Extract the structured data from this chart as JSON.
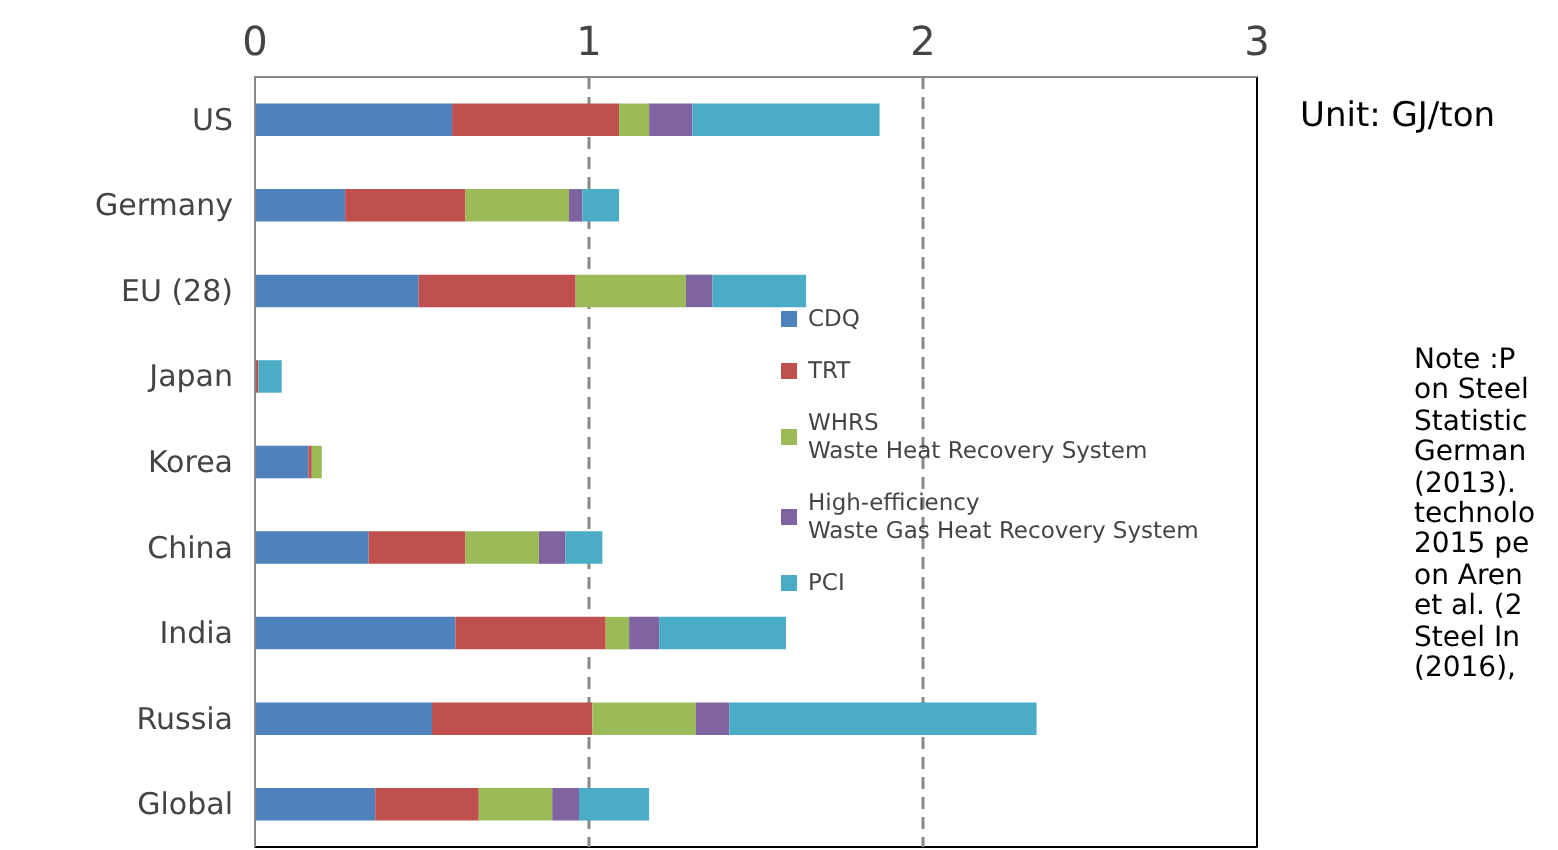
{
  "chart_data": {
    "type": "bar",
    "orientation": "horizontal",
    "stacked": true,
    "categories": [
      "US",
      "Germany",
      "EU (28)",
      "Japan",
      "Korea",
      "China",
      "India",
      "Russia",
      "Global"
    ],
    "series": [
      {
        "name": "CDQ",
        "color": "#4f81bd",
        "values": [
          0.59,
          0.27,
          0.49,
          0,
          0.16,
          0.34,
          0.6,
          0.53,
          0.36
        ]
      },
      {
        "name": "TRT",
        "color": "#c0504d",
        "values": [
          0.5,
          0.36,
          0.47,
          0.01,
          0.01,
          0.29,
          0.45,
          0.48,
          0.31
        ]
      },
      {
        "name": "WHRS\nWaste Heat Recovery System",
        "color": "#9bbb59",
        "values": [
          0.09,
          0.31,
          0.33,
          0,
          0.03,
          0.22,
          0.07,
          0.31,
          0.22
        ]
      },
      {
        "name": "High-efficiency\nWaste Gas Heat Recovery System",
        "color": "#8064a2",
        "values": [
          0.13,
          0.04,
          0.08,
          0,
          0,
          0.08,
          0.09,
          0.1,
          0.08
        ]
      },
      {
        "name": "PCI",
        "color": "#4bacc6",
        "values": [
          0.56,
          0.11,
          0.28,
          0.07,
          0,
          0.11,
          0.38,
          0.92,
          0.21
        ]
      }
    ],
    "xlim": [
      0,
      3
    ],
    "xticks": [
      0,
      1,
      2,
      3
    ],
    "grid": "x",
    "legend": "right",
    "annotations": [
      "Unit: GJ/ton",
      "Note :P\non Steel\nStatistic\nGerman\n(2013).\ntechnolo\n2015 pe\non Aren\net al. (2\nSteel In\n(2016),"
    ]
  }
}
